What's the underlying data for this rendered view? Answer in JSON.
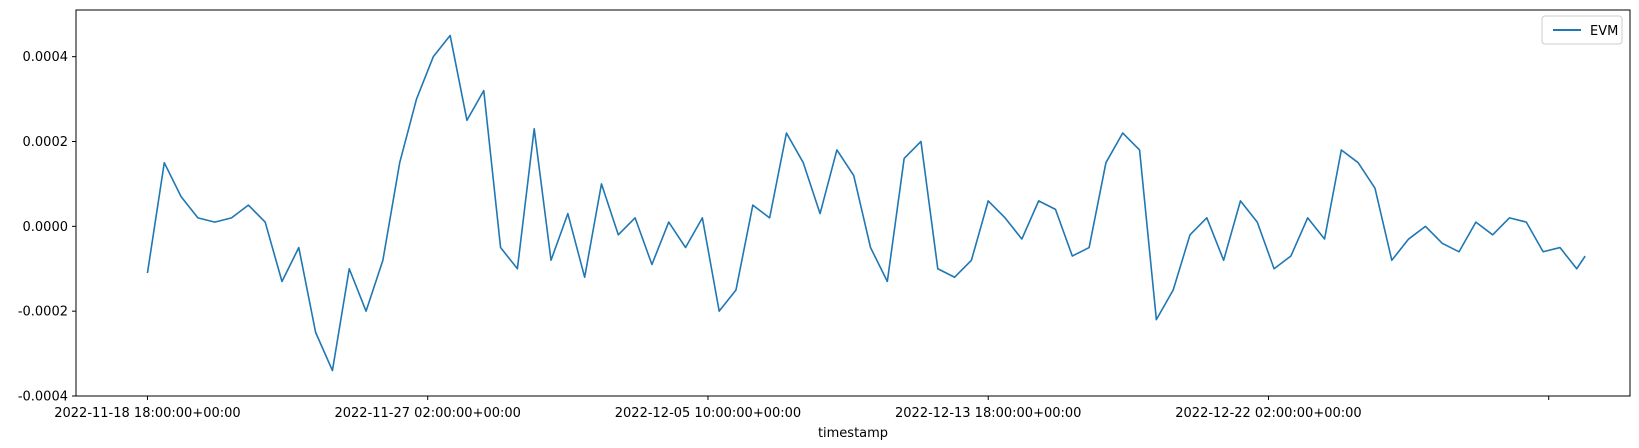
{
  "chart_data": {
    "type": "line",
    "xlabel": "timestamp",
    "ylabel": "",
    "title": "",
    "x_ticks": [
      "2022-11-18 18:00:00+00:00",
      "2022-11-27 02:00:00+00:00",
      "2022-12-05 10:00:00+00:00",
      "2022-12-13 18:00:00+00:00",
      "2022-12-22 02:00:00+00:00",
      ""
    ],
    "y_ticks": [
      "-0.0004",
      "-0.0002",
      "0.0000",
      "0.0002",
      "0.0004"
    ],
    "y_tick_values": [
      -0.0004,
      -0.0002,
      0.0,
      0.0002,
      0.0004
    ],
    "ylim": [
      -0.0004,
      0.00051
    ],
    "xlim": [
      "2022-11-16 15:00:00+00:00",
      "2023-01-01 20:00:00+00:00"
    ],
    "grid": false,
    "legend_position": "top-right",
    "series": [
      {
        "name": "EVM",
        "color": "#1f77b4",
        "x": [
          "2022-11-18 18:00:00+00:00",
          "2022-11-19 06:00:00+00:00",
          "2022-11-19 18:00:00+00:00",
          "2022-11-20 06:00:00+00:00",
          "2022-11-20 18:00:00+00:00",
          "2022-11-21 06:00:00+00:00",
          "2022-11-21 18:00:00+00:00",
          "2022-11-22 06:00:00+00:00",
          "2022-11-22 18:00:00+00:00",
          "2022-11-23 06:00:00+00:00",
          "2022-11-23 18:00:00+00:00",
          "2022-11-24 06:00:00+00:00",
          "2022-11-24 18:00:00+00:00",
          "2022-11-25 06:00:00+00:00",
          "2022-11-25 18:00:00+00:00",
          "2022-11-26 06:00:00+00:00",
          "2022-11-26 18:00:00+00:00",
          "2022-11-27 06:00:00+00:00",
          "2022-11-27 18:00:00+00:00",
          "2022-11-28 06:00:00+00:00",
          "2022-11-28 18:00:00+00:00",
          "2022-11-29 06:00:00+00:00",
          "2022-11-29 18:00:00+00:00",
          "2022-11-30 06:00:00+00:00",
          "2022-11-30 18:00:00+00:00",
          "2022-12-01 06:00:00+00:00",
          "2022-12-01 18:00:00+00:00",
          "2022-12-02 06:00:00+00:00",
          "2022-12-02 18:00:00+00:00",
          "2022-12-03 06:00:00+00:00",
          "2022-12-03 18:00:00+00:00",
          "2022-12-04 06:00:00+00:00",
          "2022-12-04 18:00:00+00:00",
          "2022-12-05 06:00:00+00:00",
          "2022-12-05 18:00:00+00:00",
          "2022-12-06 06:00:00+00:00",
          "2022-12-06 18:00:00+00:00",
          "2022-12-07 06:00:00+00:00",
          "2022-12-07 18:00:00+00:00",
          "2022-12-08 06:00:00+00:00",
          "2022-12-08 18:00:00+00:00",
          "2022-12-09 06:00:00+00:00",
          "2022-12-09 18:00:00+00:00",
          "2022-12-10 06:00:00+00:00",
          "2022-12-10 18:00:00+00:00",
          "2022-12-11 06:00:00+00:00",
          "2022-12-11 18:00:00+00:00",
          "2022-12-12 06:00:00+00:00",
          "2022-12-12 18:00:00+00:00",
          "2022-12-13 06:00:00+00:00",
          "2022-12-13 18:00:00+00:00",
          "2022-12-14 06:00:00+00:00",
          "2022-12-14 18:00:00+00:00",
          "2022-12-15 06:00:00+00:00",
          "2022-12-15 18:00:00+00:00",
          "2022-12-16 06:00:00+00:00",
          "2022-12-16 18:00:00+00:00",
          "2022-12-17 06:00:00+00:00",
          "2022-12-17 18:00:00+00:00",
          "2022-12-18 06:00:00+00:00",
          "2022-12-18 18:00:00+00:00",
          "2022-12-19 06:00:00+00:00",
          "2022-12-19 18:00:00+00:00",
          "2022-12-20 06:00:00+00:00",
          "2022-12-20 18:00:00+00:00",
          "2022-12-21 06:00:00+00:00",
          "2022-12-21 18:00:00+00:00",
          "2022-12-22 06:00:00+00:00",
          "2022-12-22 18:00:00+00:00",
          "2022-12-23 06:00:00+00:00",
          "2022-12-23 18:00:00+00:00",
          "2022-12-24 06:00:00+00:00",
          "2022-12-24 18:00:00+00:00",
          "2022-12-25 06:00:00+00:00",
          "2022-12-25 18:00:00+00:00",
          "2022-12-26 06:00:00+00:00",
          "2022-12-26 18:00:00+00:00",
          "2022-12-27 06:00:00+00:00",
          "2022-12-27 18:00:00+00:00",
          "2022-12-28 06:00:00+00:00",
          "2022-12-28 18:00:00+00:00",
          "2022-12-29 06:00:00+00:00",
          "2022-12-29 18:00:00+00:00",
          "2022-12-30 06:00:00+00:00",
          "2022-12-30 18:00:00+00:00",
          "2022-12-31 06:00:00+00:00",
          "2022-12-31 12:00:00+00:00"
        ],
        "values": [
          -0.00011,
          0.00015,
          7e-05,
          2e-05,
          1e-05,
          2e-05,
          5e-05,
          1e-05,
          -0.00013,
          -5e-05,
          -0.00025,
          -0.00034,
          -0.0001,
          -0.0002,
          -8e-05,
          0.00015,
          0.0003,
          0.0004,
          0.00045,
          0.00025,
          0.00032,
          -5e-05,
          -0.0001,
          0.00023,
          -8e-05,
          3e-05,
          -0.00012,
          0.0001,
          -2e-05,
          2e-05,
          -9e-05,
          1e-05,
          -5e-05,
          2e-05,
          -0.0002,
          -0.00015,
          5e-05,
          2e-05,
          0.00022,
          0.00015,
          3e-05,
          0.00018,
          0.00012,
          -5e-05,
          -0.00013,
          0.00016,
          0.0002,
          -0.0001,
          -0.00012,
          -8e-05,
          6e-05,
          2e-05,
          -3e-05,
          6e-05,
          4e-05,
          -7e-05,
          -5e-05,
          0.00015,
          0.00022,
          0.00018,
          -0.00022,
          -0.00015,
          -2e-05,
          2e-05,
          -8e-05,
          6e-05,
          1e-05,
          -0.0001,
          -7e-05,
          2e-05,
          -3e-05,
          0.00018,
          0.00015,
          9e-05,
          -8e-05,
          -3e-05,
          0.0,
          -4e-05,
          -6e-05,
          1e-05,
          -2e-05,
          2e-05,
          1e-05,
          -6e-05,
          -5e-05,
          -0.0001,
          -7e-05
        ]
      }
    ]
  }
}
